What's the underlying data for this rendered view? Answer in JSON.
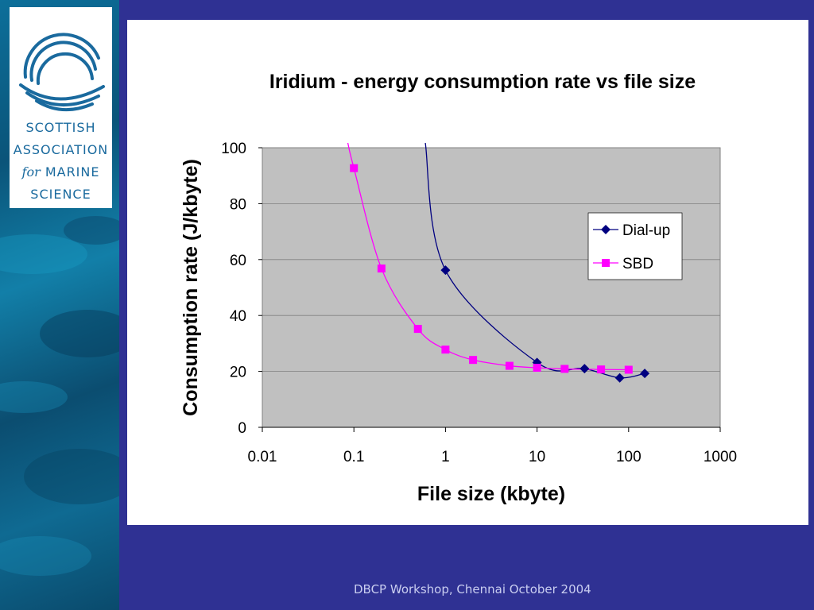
{
  "logo": {
    "line1": "SCOTTISH",
    "line2": "ASSOCIATION",
    "line3_for": "for",
    "line3_rest": "MARINE",
    "line4": "SCIENCE"
  },
  "footer": "DBCP Workshop, Chennai October 2004",
  "colors": {
    "background": "#2f3193",
    "plot_area": "#c0c0c0",
    "dialup": "#000080",
    "sbd": "#ff00ff"
  },
  "chart_data": {
    "type": "scatter",
    "title": "Iridium - energy consumption rate vs file size",
    "xlabel": "File size (kbyte)",
    "ylabel": "Consumption rate (J/kbyte)",
    "x_scale": "log",
    "xlim": [
      0.01,
      1000
    ],
    "ylim": [
      0,
      100
    ],
    "x_ticks": [
      "0.01",
      "0.1",
      "1",
      "10",
      "100",
      "1000"
    ],
    "y_ticks": [
      "0",
      "20",
      "40",
      "60",
      "80",
      "100"
    ],
    "grid": true,
    "legend_position": "right",
    "series": [
      {
        "name": "Dial-up",
        "marker": "diamond",
        "color": "#000080",
        "x": [
          1,
          10,
          33,
          80,
          150
        ],
        "y": [
          56.2,
          23.2,
          21,
          17.7,
          19.3
        ]
      },
      {
        "name": "SBD",
        "marker": "square",
        "color": "#ff00ff",
        "x": [
          0.1,
          0.2,
          0.5,
          1,
          2,
          5,
          10,
          20,
          50,
          100
        ],
        "y": [
          92.7,
          56.8,
          35.2,
          27.8,
          24.1,
          22.0,
          21.3,
          20.9,
          20.7,
          20.6
        ]
      }
    ]
  }
}
